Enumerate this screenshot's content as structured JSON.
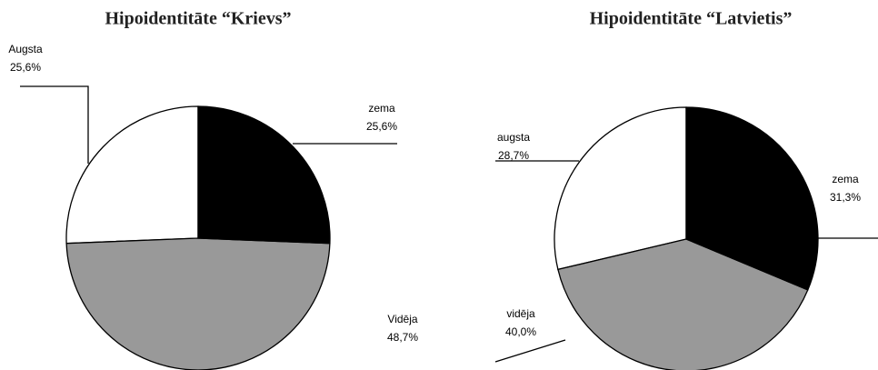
{
  "chart_data": [
    {
      "type": "pie",
      "title": "Hipoidentitāte “Krievs”",
      "categories": [
        "zema",
        "Vidēja",
        "Augsta"
      ],
      "values": [
        25.6,
        48.7,
        25.6
      ],
      "value_labels": [
        "25,6%",
        "48,7%",
        "25,6%"
      ],
      "colors": [
        "#000000",
        "#999999",
        "#ffffff"
      ]
    },
    {
      "type": "pie",
      "title": "Hipoidentitāte “Latvietis”",
      "categories": [
        "zema",
        "vidēja",
        "augsta"
      ],
      "values": [
        31.3,
        40.0,
        28.7
      ],
      "value_labels": [
        "31,3%",
        "40,0%",
        "28,7%"
      ],
      "colors": [
        "#000000",
        "#999999",
        "#ffffff"
      ]
    }
  ]
}
